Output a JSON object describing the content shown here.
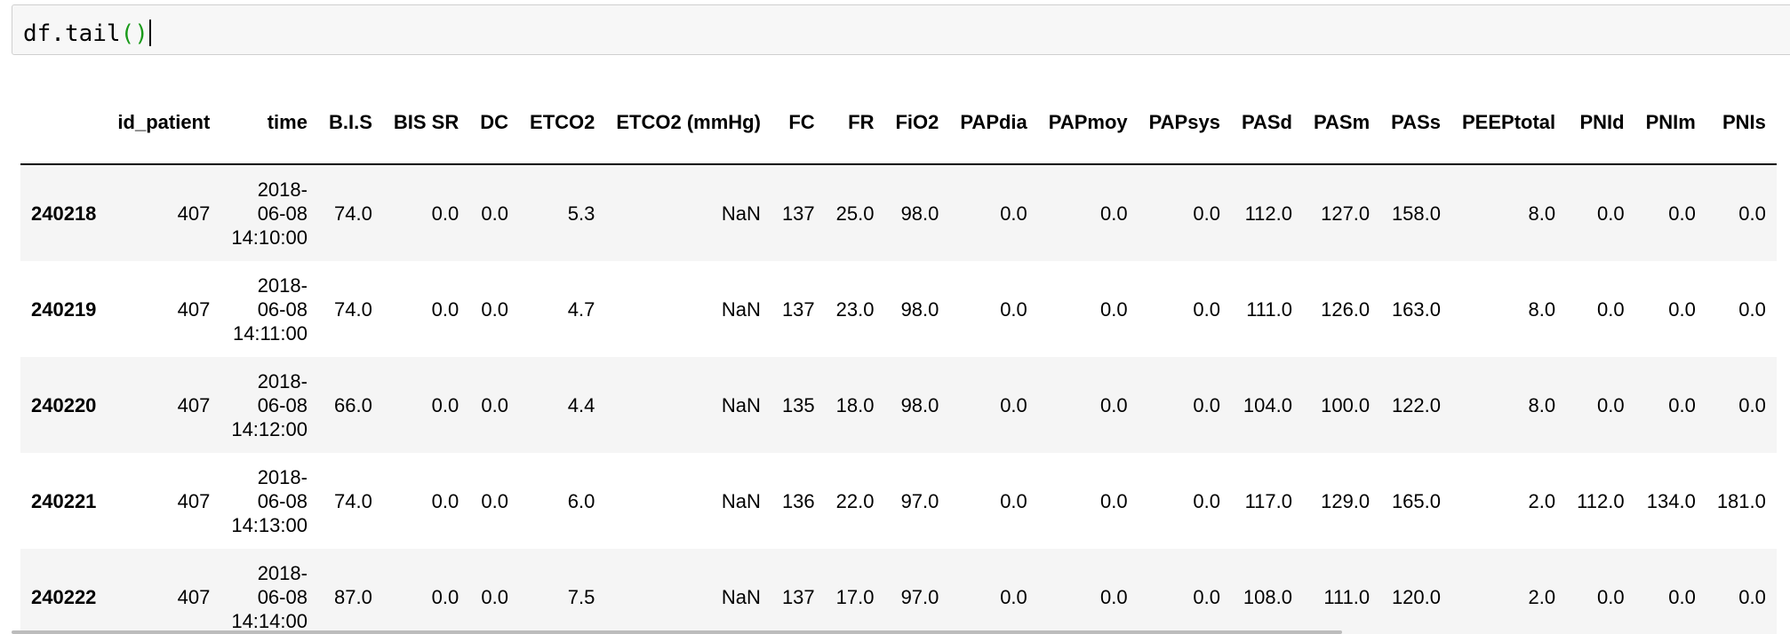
{
  "input": {
    "code_prefix": "df.tail",
    "code_parens": "()"
  },
  "table": {
    "columns": [
      "id_patient",
      "time",
      "B.I.S",
      "BIS SR",
      "DC",
      "ETCO2",
      "ETCO2 (mmHg)",
      "FC",
      "FR",
      "FiO2",
      "PAPdia",
      "PAPmoy",
      "PAPsys",
      "PASd",
      "PASm",
      "PASs",
      "PEEPtotal",
      "PNId",
      "PNIm",
      "PNIs"
    ],
    "rows": [
      {
        "index": "240218",
        "time": [
          "2018-",
          "06-08",
          "14:10:00"
        ],
        "cells": [
          "407",
          "74.0",
          "0.0",
          "0.0",
          "5.3",
          "NaN",
          "137",
          "25.0",
          "98.0",
          "0.0",
          "0.0",
          "0.0",
          "112.0",
          "127.0",
          "158.0",
          "8.0",
          "0.0",
          "0.0",
          "0.0"
        ]
      },
      {
        "index": "240219",
        "time": [
          "2018-",
          "06-08",
          "14:11:00"
        ],
        "cells": [
          "407",
          "74.0",
          "0.0",
          "0.0",
          "4.7",
          "NaN",
          "137",
          "23.0",
          "98.0",
          "0.0",
          "0.0",
          "0.0",
          "111.0",
          "126.0",
          "163.0",
          "8.0",
          "0.0",
          "0.0",
          "0.0"
        ]
      },
      {
        "index": "240220",
        "time": [
          "2018-",
          "06-08",
          "14:12:00"
        ],
        "cells": [
          "407",
          "66.0",
          "0.0",
          "0.0",
          "4.4",
          "NaN",
          "135",
          "18.0",
          "98.0",
          "0.0",
          "0.0",
          "0.0",
          "104.0",
          "100.0",
          "122.0",
          "8.0",
          "0.0",
          "0.0",
          "0.0"
        ]
      },
      {
        "index": "240221",
        "time": [
          "2018-",
          "06-08",
          "14:13:00"
        ],
        "cells": [
          "407",
          "74.0",
          "0.0",
          "0.0",
          "6.0",
          "NaN",
          "136",
          "22.0",
          "97.0",
          "0.0",
          "0.0",
          "0.0",
          "117.0",
          "129.0",
          "165.0",
          "2.0",
          "112.0",
          "134.0",
          "181.0"
        ]
      },
      {
        "index": "240222",
        "time": [
          "2018-",
          "06-08",
          "14:14:00"
        ],
        "cells": [
          "407",
          "87.0",
          "0.0",
          "0.0",
          "7.5",
          "NaN",
          "137",
          "17.0",
          "97.0",
          "0.0",
          "0.0",
          "0.0",
          "108.0",
          "111.0",
          "120.0",
          "2.0",
          "0.0",
          "0.0",
          "0.0"
        ]
      }
    ]
  },
  "colors": {
    "input_background": "#f7f7f7",
    "input_border": "#cfcfcf",
    "paren_green": "#1a9a1a",
    "row_stripe": "#f5f5f5",
    "scrollbar": "#bcbcbc"
  }
}
